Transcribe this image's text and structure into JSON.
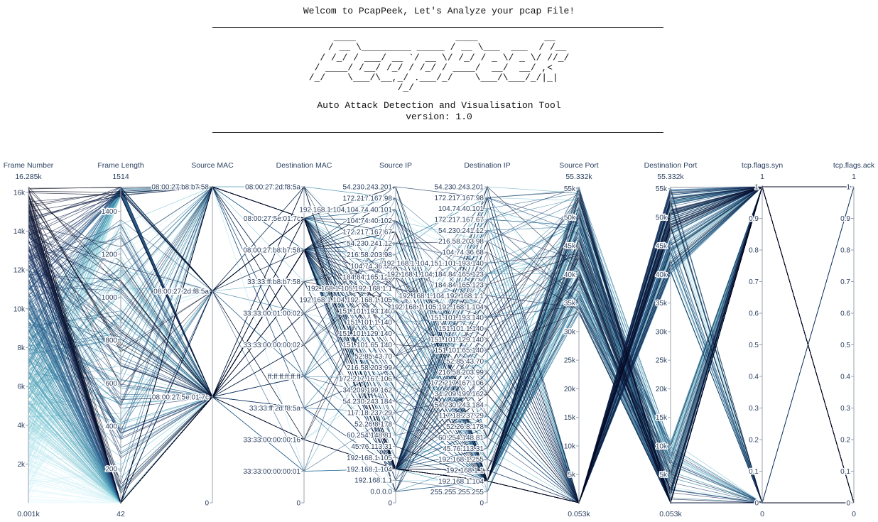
{
  "banner": {
    "welcome": "Welcom to PcapPeek, Let's Analyze your pcap File!",
    "ascii_art": [
      "    ____                  ____            __  ",
      "   / __ \\_________ _____ / __ \\___  ___  / /__",
      "  / /_/ / ___/ __ `/ __ \\/ /_/ / _ \\/ _ \\/ //_/",
      " / ____/ /__/ /_/ / /_/ / ____/  __/  __/ ,<   ",
      "/_/    \\___/\\__,_/ .___/_/    \\___/\\___/_/|_|  ",
      "                /_/                            "
    ],
    "tagline": "Auto Attack Detection and Visualisation Tool",
    "version": "version: 1.0"
  },
  "chart_data": {
    "type": "parallel_coordinates",
    "colorscale": "ice",
    "colors": [
      "#03051a",
      "#1b2f5c",
      "#2c5c8a",
      "#3c88a8",
      "#6cb9c9",
      "#bde8ee",
      "#eafbff"
    ],
    "line_count_approx": 16285,
    "dimensions": [
      {
        "label": "Frame Number",
        "range": [
          1,
          16285
        ],
        "range_labels": [
          "0.001k",
          "16.285k"
        ],
        "ticks": [
          "16k",
          "14k",
          "12k",
          "10k",
          "8k",
          "6k",
          "4k",
          "2k"
        ],
        "tick_values": [
          16000,
          14000,
          12000,
          10000,
          8000,
          6000,
          4000,
          2000
        ]
      },
      {
        "label": "Frame Length",
        "range": [
          42,
          1514
        ],
        "range_labels": [
          "42",
          "1514"
        ],
        "ticks": [
          "1400",
          "1200",
          "1000",
          "800",
          "600",
          "400",
          "200"
        ],
        "tick_values": [
          1400,
          1200,
          1000,
          800,
          600,
          400,
          200
        ]
      },
      {
        "label": "Source MAC",
        "categories": [
          "0",
          "08:00:27:5e:01:7c",
          "08:00:27:2d:f8:5a",
          "08:00:27:b8:b7:58"
        ],
        "positions": [
          0,
          0.335,
          0.67,
          1
        ]
      },
      {
        "label": "Destination MAC",
        "categories": [
          "0",
          "33:33:00:00:00:01",
          "33:33:00:00:00:16",
          "33:33:ff:2d:f8:5a",
          "ff:ff:ff:ff:ff:ff",
          "33:33:00:00:00:02",
          "33:33:00:01:00:02",
          "33:33:ff:b8:b7:58",
          "08:00:27:b8:b7:58",
          "08:00:27:5e:01:7c",
          "08:00:27:2d:f8:5a"
        ],
        "positions": [
          0,
          0.1,
          0.2,
          0.3,
          0.4,
          0.5,
          0.6,
          0.7,
          0.8,
          0.9,
          1
        ]
      },
      {
        "label": "Source IP",
        "categories": [
          "0",
          "0.0.0.0",
          "192.168.1.1",
          "192.168.1.104",
          "192.168.1.105",
          "45.76.113.31",
          "60.254.148.81",
          "52.26.8.178",
          "117.18.237.29",
          "54.230.243.184",
          "34.209.199.162",
          "172.217.167.106",
          "216.58.203.99",
          "52.85.43.70",
          "151.101.65.140",
          "151.101.129.140",
          "151.101.1.140",
          "151.101.193.140",
          "192.168.1.104,192.168.1.105",
          "192.168.1.105,192.168.1.1",
          "184.84.165.123",
          "104.74.36.68",
          "216.58.203.98",
          "54.230.241.12",
          "172.217.167.67",
          "104.74.40.102",
          "192.168.1.104,104.74.40.101",
          "172.217.167.98",
          "54.230.243.201"
        ]
      },
      {
        "label": "Destination IP",
        "categories": [
          "0",
          "255.255.255.255",
          "192.168.1.104",
          "192.168.1.1",
          "192.168.1.255",
          "45.76.113.31",
          "60.254.148.81",
          "52.26.8.178",
          "117.18.237.29",
          "54.230.243.184",
          "34.209.199.162",
          "172.217.167.106",
          "216.58.203.99",
          "52.85.43.70",
          "151.101.65.140",
          "151.101.129.140",
          "151.101.1.140",
          "151.101.193.140",
          "192.168.1.105,192.168.1.104",
          "192.168.1.104,192.168.1.1",
          "184.84.165.123",
          "192.168.1.104,184.84.165.123",
          "192.168.1.104,151.101.193.140",
          "104.74.36.68",
          "216.58.203.98",
          "54.230.241.12",
          "172.217.167.67",
          "104.74.40.101",
          "172.217.167.98",
          "54.230.243.201"
        ]
      },
      {
        "label": "Source Port",
        "range": [
          53,
          55332
        ],
        "range_labels": [
          "0.053k",
          "55.332k"
        ],
        "ticks": [
          "55k",
          "50k",
          "45k",
          "40k",
          "35k",
          "30k",
          "25k",
          "20k",
          "15k",
          "10k",
          "5k"
        ],
        "tick_values": [
          55000,
          50000,
          45000,
          40000,
          35000,
          30000,
          25000,
          20000,
          15000,
          10000,
          5000
        ]
      },
      {
        "label": "Destination Port",
        "range": [
          53,
          55332
        ],
        "range_labels": [
          "0.053k",
          "55.332k"
        ],
        "ticks": [
          "55k",
          "50k",
          "45k",
          "40k",
          "35k",
          "30k",
          "25k",
          "20k",
          "15k",
          "10k",
          "5k"
        ],
        "tick_values": [
          55000,
          50000,
          45000,
          40000,
          35000,
          30000,
          25000,
          20000,
          15000,
          10000,
          5000
        ]
      },
      {
        "label": "tcp.flags.syn",
        "range": [
          0,
          1
        ],
        "range_labels": [
          "0",
          "1"
        ],
        "ticks": [
          "1",
          "0.9",
          "0.8",
          "0.7",
          "0.6",
          "0.5",
          "0.4",
          "0.3",
          "0.2",
          "0.1",
          "0"
        ],
        "tick_values": [
          1,
          0.9,
          0.8,
          0.7,
          0.6,
          0.5,
          0.4,
          0.3,
          0.2,
          0.1,
          0
        ]
      },
      {
        "label": "tcp.flags.ack",
        "range": [
          0,
          1
        ],
        "range_labels": [
          "0",
          "1"
        ],
        "ticks": [
          "1",
          "0.9",
          "0.8",
          "0.7",
          "0.6",
          "0.5",
          "0.4",
          "0.3",
          "0.2",
          "0.1",
          "0"
        ],
        "tick_values": [
          1,
          0.9,
          0.8,
          0.7,
          0.6,
          0.5,
          0.4,
          0.3,
          0.2,
          0.1,
          0
        ]
      }
    ]
  }
}
